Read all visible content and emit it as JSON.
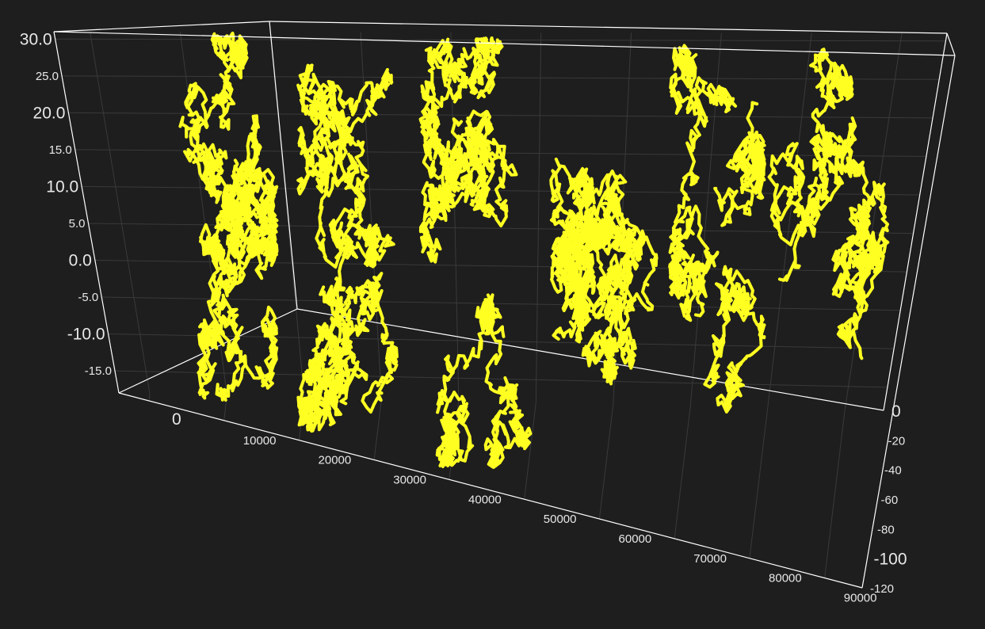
{
  "chart_data": {
    "type": "line",
    "projection": "3d-perspective",
    "title": "",
    "series": [
      {
        "mark": "line",
        "color": "#ffff22",
        "x_range": [
          0,
          92000
        ],
        "cluster_centers_x": [
          7000,
          23500,
          40500,
          60000,
          74500,
          86000
        ],
        "z_range": [
          -110,
          0
        ],
        "y_range": [
          -20,
          30
        ]
      }
    ],
    "y_axis": {
      "label": "",
      "ylim": [
        -18,
        31
      ],
      "ticks": [
        {
          "value": 30,
          "label": "30.0",
          "major": true
        },
        {
          "value": 25,
          "label": "25.0",
          "major": false
        },
        {
          "value": 20,
          "label": "20.0",
          "major": true
        },
        {
          "value": 15,
          "label": "15.0",
          "major": false
        },
        {
          "value": 10,
          "label": "10.0",
          "major": true
        },
        {
          "value": 5,
          "label": "5.0",
          "major": false
        },
        {
          "value": 0,
          "label": "0.0",
          "major": true
        },
        {
          "value": -5,
          "label": "-5.0",
          "major": false
        },
        {
          "value": -10,
          "label": "-10.0",
          "major": true
        },
        {
          "value": -15,
          "label": "-15.0",
          "major": false
        }
      ]
    },
    "x_axis": {
      "label": "",
      "xlim": [
        -4000,
        95000
      ],
      "ticks": [
        {
          "value": 0,
          "label": "0",
          "major": true
        },
        {
          "value": 10000,
          "label": "10000",
          "major": false
        },
        {
          "value": 20000,
          "label": "20000",
          "major": false
        },
        {
          "value": 30000,
          "label": "30000",
          "major": false
        },
        {
          "value": 40000,
          "label": "40000",
          "major": false
        },
        {
          "value": 50000,
          "label": "50000",
          "major": false
        },
        {
          "value": 60000,
          "label": "60000",
          "major": false
        },
        {
          "value": 70000,
          "label": "70000",
          "major": false
        },
        {
          "value": 80000,
          "label": "80000",
          "major": false
        },
        {
          "value": 90000,
          "label": "90000",
          "major": false
        }
      ]
    },
    "z_axis": {
      "label": "",
      "zlim": [
        -120,
        0
      ],
      "ticks": [
        {
          "value": 0,
          "label": "0",
          "major": true
        },
        {
          "value": -20,
          "label": "-20",
          "major": false
        },
        {
          "value": -40,
          "label": "-40",
          "major": false
        },
        {
          "value": -60,
          "label": "-60",
          "major": false
        },
        {
          "value": -80,
          "label": "-80",
          "major": false
        },
        {
          "value": -100,
          "label": "-100",
          "major": true
        },
        {
          "value": -120,
          "label": "-120",
          "major": false
        }
      ]
    },
    "grid": true,
    "legend": "none",
    "colors": {
      "background": "#1e1e1e",
      "box": "#ffffff",
      "grid": "#3a3a3a",
      "series": "#ffff22"
    }
  }
}
